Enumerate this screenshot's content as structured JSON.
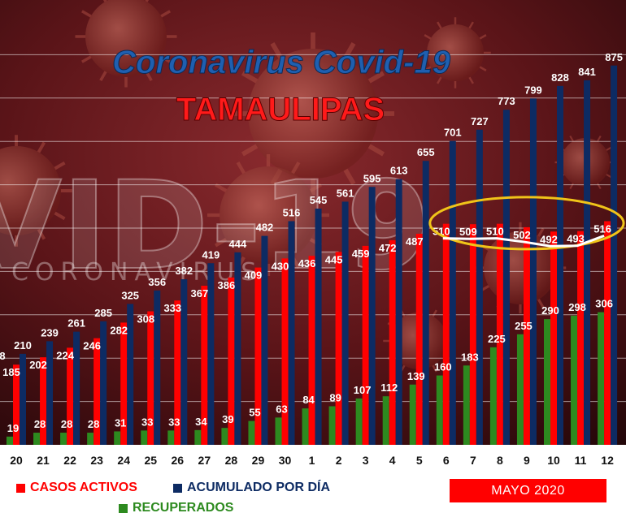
{
  "title": "Coronavirus Covid-19",
  "subtitle": "TAMAULIPAS",
  "background_text": {
    "big": "VID-19",
    "small": "CORONAVIRUS"
  },
  "month_label": "MAYO 2020",
  "colors": {
    "activos": "#ff0000",
    "acumulado": "#0d2b63",
    "recuperados": "#2d8a1f",
    "highlight": "#f0c419"
  },
  "legend": {
    "activos": "CASOS ACTIVOS",
    "acumulado": "ACUMULADO POR DÍA",
    "recuperados": "RECUPERADOS"
  },
  "chart_data": {
    "type": "bar",
    "categories": [
      "20",
      "21",
      "22",
      "23",
      "24",
      "25",
      "26",
      "27",
      "28",
      "29",
      "30",
      "1",
      "2",
      "3",
      "4",
      "5",
      "6",
      "7",
      "8",
      "9",
      "10",
      "11",
      "12"
    ],
    "series": [
      {
        "name": "CASOS ACTIVOS",
        "values": [
          185,
          202,
          224,
          246,
          282,
          308,
          333,
          367,
          386,
          409,
          430,
          436,
          445,
          459,
          472,
          487,
          510,
          509,
          510,
          502,
          492,
          493,
          516
        ]
      },
      {
        "name": "ACUMULADO POR DÍA",
        "values": [
          210,
          239,
          261,
          285,
          325,
          356,
          382,
          419,
          444,
          482,
          516,
          545,
          561,
          595,
          613,
          655,
          701,
          727,
          773,
          799,
          828,
          841,
          875
        ]
      },
      {
        "name": "RECUPERADOS",
        "values": [
          19,
          28,
          28,
          28,
          31,
          33,
          33,
          34,
          39,
          55,
          63,
          84,
          89,
          107,
          112,
          139,
          160,
          183,
          225,
          255,
          290,
          298,
          306
        ]
      }
    ],
    "partial_labels": {
      "activos_first": "8"
    },
    "highlight_range": [
      "6",
      "12"
    ],
    "ylim": [
      0,
      900
    ],
    "grid": true
  }
}
